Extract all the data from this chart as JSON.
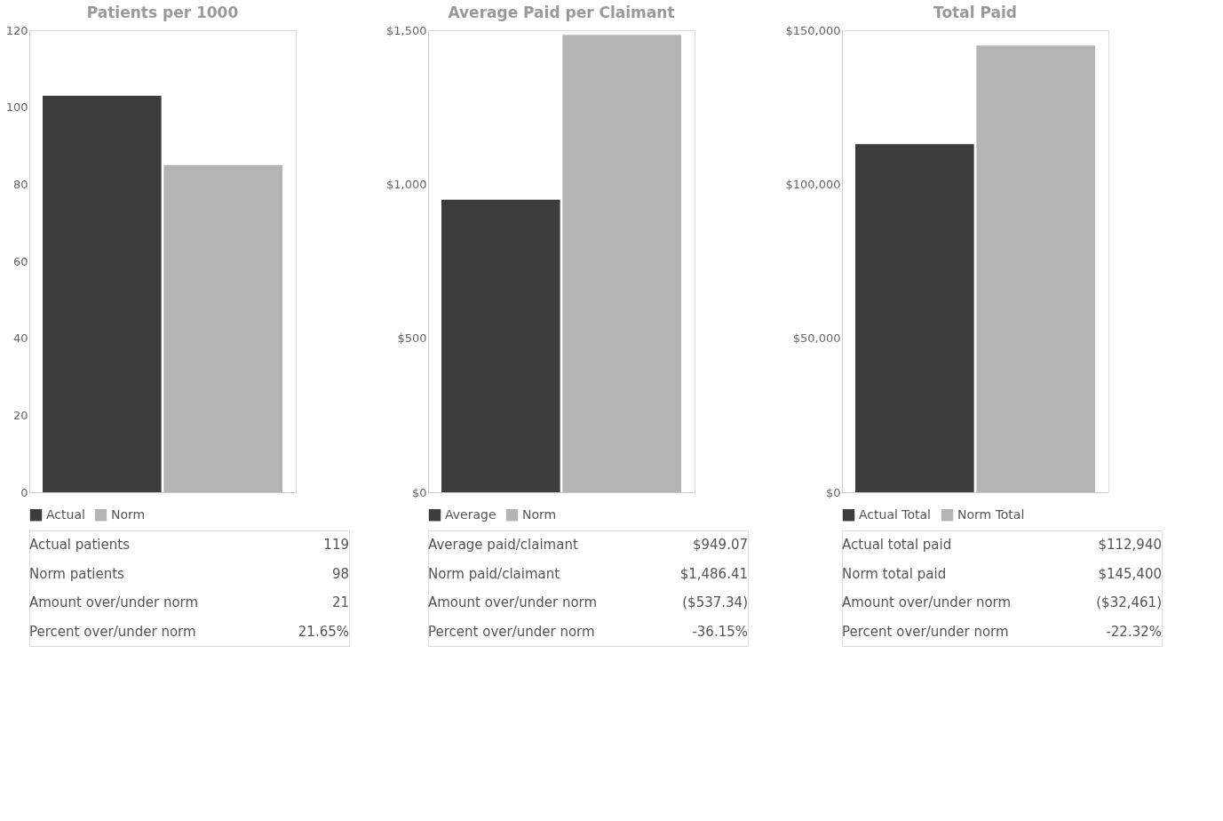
{
  "chart_data": [
    {
      "type": "bar",
      "title": "Patients per 1000",
      "categories": [
        null
      ],
      "series": [
        {
          "name": "Actual",
          "color": "#3c3c3c",
          "values": [
            103
          ]
        },
        {
          "name": "Norm",
          "color": "#b4b4b4",
          "values": [
            85
          ]
        }
      ],
      "ylim": [
        0,
        120
      ],
      "yticks": [
        0,
        20,
        40,
        60,
        80,
        100,
        120
      ],
      "grid": false,
      "legend": "bottom",
      "tick_labels": "y",
      "annotations": [
        "Actual patients",
        "119",
        "Norm patients",
        "98",
        "Amount over/under norm",
        "21",
        "Percent over/under norm",
        "21.65%"
      ]
    },
    {
      "type": "bar",
      "title": "Average Paid per Claimant",
      "categories": [
        null
      ],
      "series": [
        {
          "name": "Average",
          "color": "#3c3c3c",
          "values": [
            950
          ]
        },
        {
          "name": "Norm",
          "color": "#b4b4b4",
          "values": [
            1485
          ]
        }
      ],
      "ylim": [
        0,
        1500
      ],
      "yticks": [
        {
          "value": 0,
          "label": "$0"
        },
        {
          "value": 500,
          "label": "$500"
        },
        {
          "value": 1000,
          "label": "$1,000"
        },
        {
          "value": 1500,
          "label": "$1,500"
        }
      ],
      "grid": false,
      "legend": "bottom",
      "tick_labels": "y",
      "annotations": [
        "Average paid/claimant",
        "$949.07",
        "Norm paid/claimant",
        "$1,486.41",
        "Amount over/under norm",
        "($537.34)",
        "Percent over/under norm",
        "-36.15%"
      ]
    },
    {
      "type": "bar",
      "title": "Total Paid",
      "categories": [
        null
      ],
      "series": [
        {
          "name": "Actual Total",
          "color": "#3c3c3c",
          "values": [
            113000
          ]
        },
        {
          "name": "Norm Total",
          "color": "#b4b4b4",
          "values": [
            145000
          ]
        }
      ],
      "ylim": [
        0,
        150000
      ],
      "yticks": [
        {
          "value": 0,
          "label": "$0"
        },
        {
          "value": 50000,
          "label": "$50,000"
        },
        {
          "value": 100000,
          "label": "$100,000"
        },
        {
          "value": 150000,
          "label": "$150,000"
        }
      ],
      "grid": false,
      "legend": "bottom",
      "tick_labels": "y",
      "annotations": [
        "Actual total paid",
        "$112,940",
        "Norm total paid",
        "$145,400",
        "Amount over/under norm",
        "($32,461)",
        "Percent over/under norm",
        "-22.32%"
      ]
    }
  ]
}
